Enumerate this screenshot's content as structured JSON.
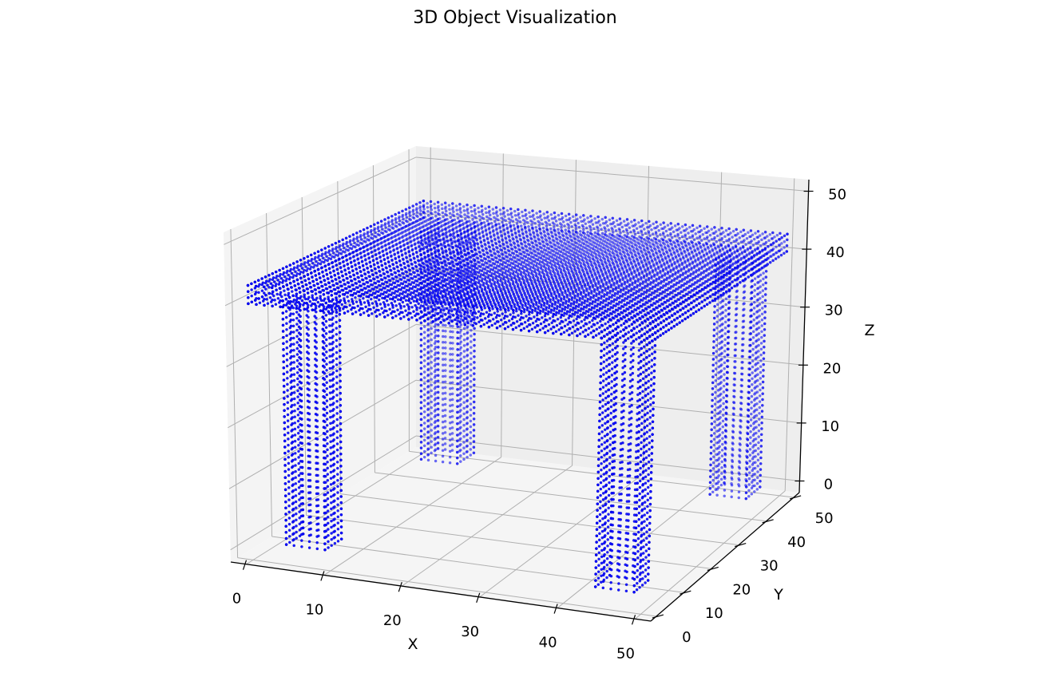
{
  "chart_data": {
    "type": "scatter",
    "projection": "3d",
    "title": "3D Object Visualization",
    "xlabel": "X",
    "ylabel": "Y",
    "zlabel": "Z",
    "xlim": [
      -2,
      52
    ],
    "ylim": [
      -2,
      52
    ],
    "zlim": [
      -2,
      52
    ],
    "xticks": [
      0,
      10,
      20,
      30,
      40,
      50
    ],
    "yticks": [
      0,
      10,
      20,
      30,
      40,
      50
    ],
    "zticks": [
      0,
      10,
      20,
      30,
      40,
      50
    ],
    "grid": true,
    "pane_color": "#f2f2f2",
    "grid_color": "#b0b0b0",
    "point_color": "#0000ff",
    "shapes": [
      {
        "name": "tabletop",
        "x": [
          0,
          50
        ],
        "y": [
          0,
          50
        ],
        "z": [
          40,
          43
        ]
      },
      {
        "name": "leg-front-left",
        "x": [
          3,
          8
        ],
        "y": [
          3,
          8
        ],
        "z": [
          0,
          40
        ]
      },
      {
        "name": "leg-front-right",
        "x": [
          43,
          48
        ],
        "y": [
          3,
          8
        ],
        "z": [
          0,
          40
        ]
      },
      {
        "name": "leg-back-left",
        "x": [
          3,
          8
        ],
        "y": [
          43,
          48
        ],
        "z": [
          0,
          40
        ]
      },
      {
        "name": "leg-back-right",
        "x": [
          43,
          48
        ],
        "y": [
          43,
          48
        ],
        "z": [
          0,
          40
        ]
      }
    ]
  }
}
